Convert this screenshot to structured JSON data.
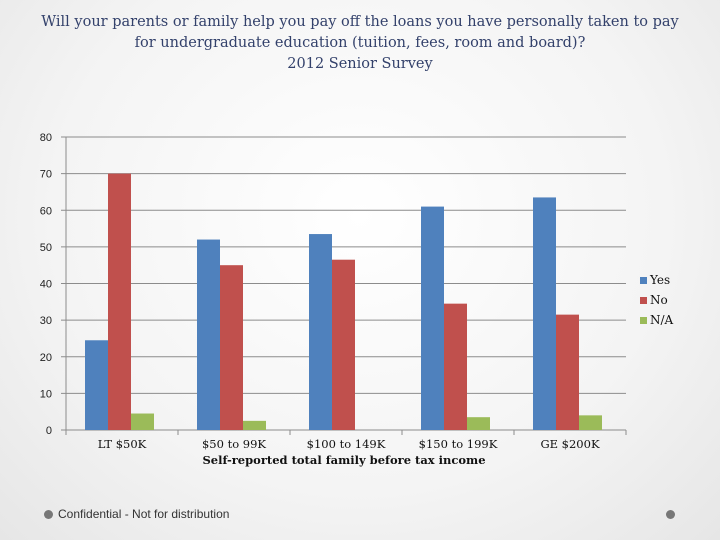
{
  "slide": {
    "title_line1": "Will your parents or family help you pay off the loans you have personally taken to pay",
    "title_line2": "for undergraduate education (tuition, fees, room and board)?",
    "title_line3": "2012 Senior Survey",
    "footer": "Confidential - Not for distribution"
  },
  "colors": {
    "Yes": "#4f81bd",
    "No": "#c0504d",
    "N/A": "#9bbb59",
    "title": "#33416b"
  },
  "chart_data": {
    "type": "bar",
    "categories": [
      "LT $50K",
      "$50 to 99K",
      "$100 to 149K",
      "$150 to 199K",
      "GE $200K"
    ],
    "series": [
      {
        "name": "Yes",
        "values": [
          24.5,
          52,
          53.5,
          61,
          63.5
        ]
      },
      {
        "name": "No",
        "values": [
          70,
          45,
          46.5,
          34.5,
          31.5
        ]
      },
      {
        "name": "N/A",
        "values": [
          4.5,
          2.5,
          0,
          3.5,
          4
        ]
      }
    ],
    "xlabel": "Self-reported total family before tax income",
    "ylabel": "",
    "ylim": [
      0,
      80
    ],
    "yticks": [
      0,
      10,
      20,
      30,
      40,
      50,
      60,
      70,
      80
    ],
    "grid": true,
    "legend": "right"
  }
}
